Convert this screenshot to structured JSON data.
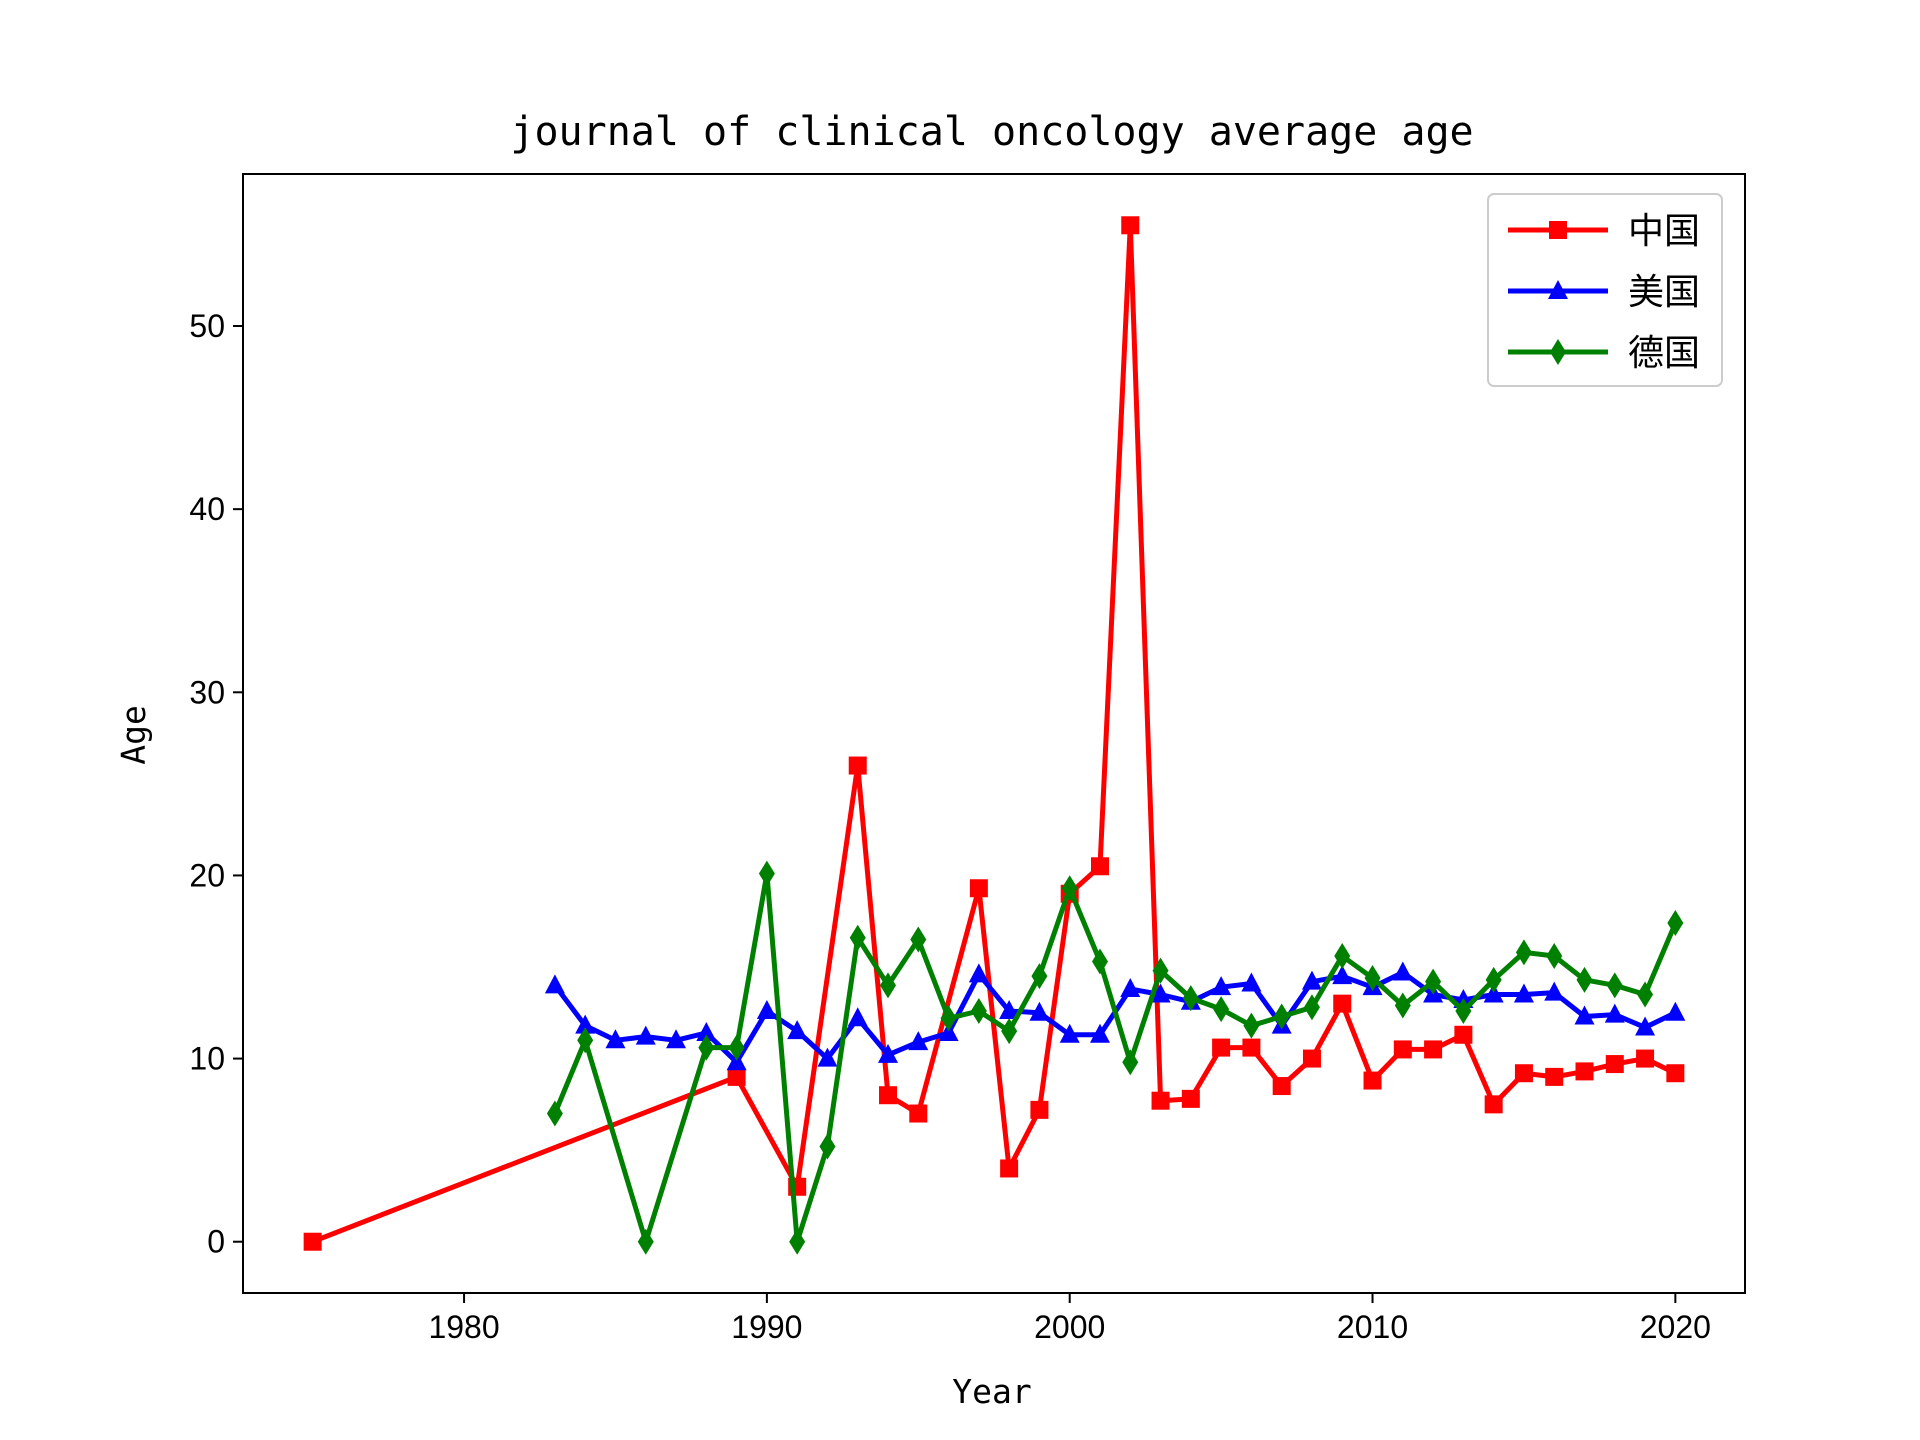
{
  "chart_data": {
    "type": "line",
    "title": "journal of clinical oncology average age",
    "xlabel": "Year",
    "ylabel": "Age",
    "xlim": [
      1972.7,
      2022.3
    ],
    "ylim": [
      -2.8,
      58.3
    ],
    "xticks": [
      1980,
      1990,
      2000,
      2010,
      2020
    ],
    "yticks": [
      0,
      10,
      20,
      30,
      40,
      50
    ],
    "grid": false,
    "legend": "top-right",
    "series": [
      {
        "name": "中国",
        "color": "#ff0000",
        "marker": "square",
        "x": [
          1975,
          1989,
          1991,
          1993,
          1994,
          1995,
          1997,
          1998,
          1999,
          2000,
          2001,
          2002,
          2003,
          2004,
          2005,
          2006,
          2007,
          2008,
          2009,
          2010,
          2011,
          2012,
          2013,
          2014,
          2015,
          2016,
          2017,
          2018,
          2019,
          2020
        ],
        "y": [
          0,
          9,
          3,
          26,
          8,
          7,
          19.3,
          4,
          7.2,
          19,
          20.5,
          55.5,
          7.7,
          7.8,
          10.6,
          10.6,
          8.5,
          10,
          13,
          8.8,
          10.5,
          10.5,
          11.3,
          7.5,
          9.2,
          9,
          9.3,
          9.7,
          10,
          9.2
        ]
      },
      {
        "name": "美国",
        "color": "#0000ff",
        "marker": "triangle",
        "x": [
          1983,
          1984,
          1985,
          1986,
          1987,
          1988,
          1989,
          1990,
          1991,
          1992,
          1993,
          1994,
          1995,
          1996,
          1997,
          1998,
          1999,
          2000,
          2001,
          2002,
          2003,
          2004,
          2005,
          2006,
          2007,
          2008,
          2009,
          2010,
          2011,
          2012,
          2013,
          2014,
          2015,
          2016,
          2017,
          2018,
          2019,
          2020
        ],
        "y": [
          14,
          11.8,
          11,
          11.2,
          11,
          11.4,
          9.8,
          12.6,
          11.5,
          10,
          12.2,
          10.2,
          10.9,
          11.4,
          14.6,
          12.6,
          12.5,
          11.3,
          11.3,
          13.8,
          13.5,
          13.1,
          13.9,
          14.1,
          11.8,
          14.2,
          14.5,
          13.9,
          14.7,
          13.5,
          13.2,
          13.5,
          13.5,
          13.6,
          12.3,
          12.4,
          11.7,
          12.5
        ]
      },
      {
        "name": "德国",
        "color": "#008000",
        "marker": "diamond",
        "x": [
          1983,
          1984,
          1986,
          1988,
          1989,
          1990,
          1991,
          1992,
          1993,
          1994,
          1995,
          1996,
          1997,
          1998,
          1999,
          2000,
          2001,
          2002,
          2003,
          2004,
          2005,
          2006,
          2007,
          2008,
          2009,
          2010,
          2011,
          2012,
          2013,
          2014,
          2015,
          2016,
          2017,
          2018,
          2019,
          2020
        ],
        "y": [
          7,
          11,
          0,
          10.6,
          10.6,
          20.1,
          0,
          5.2,
          16.6,
          14,
          16.5,
          12.2,
          12.6,
          11.5,
          14.5,
          19.3,
          15.3,
          9.8,
          14.8,
          13.3,
          12.7,
          11.8,
          12.3,
          12.8,
          15.6,
          14.4,
          12.9,
          14.2,
          12.6,
          14.3,
          15.8,
          15.6,
          14.3,
          14.0,
          13.5,
          17.4
        ]
      }
    ]
  }
}
